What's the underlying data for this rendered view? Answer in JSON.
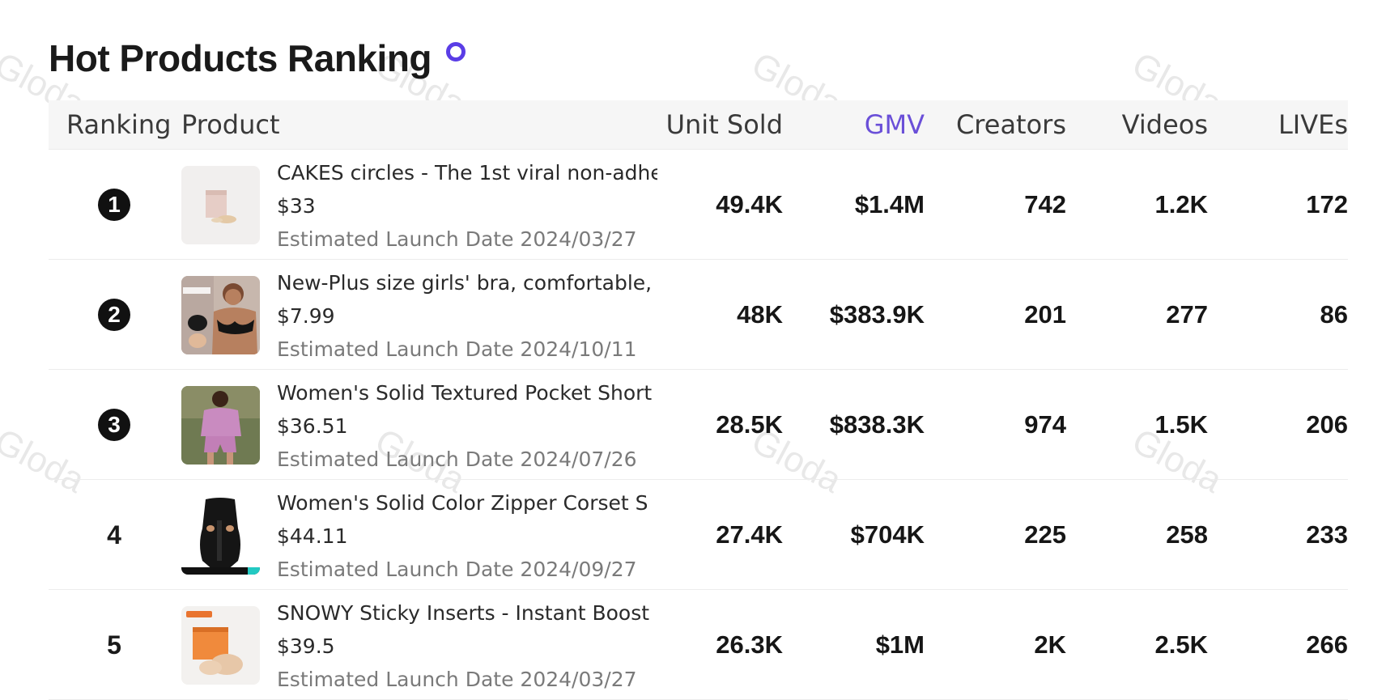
{
  "header": {
    "title": "Hot Products Ranking"
  },
  "table": {
    "columns": {
      "ranking": "Ranking",
      "product": "Product",
      "unit_sold": "Unit Sold",
      "gmv": "GMV",
      "creators": "Creators",
      "videos": "Videos",
      "lives": "LIVEs"
    },
    "rows": [
      {
        "rank": "1",
        "name": "CAKES circles - The 1st viral non-adhe",
        "price": "$33",
        "launch": "Estimated Launch Date 2024/03/27",
        "unit_sold": "49.4K",
        "gmv": "$1.4M",
        "creators": "742",
        "videos": "1.2K",
        "lives": "172"
      },
      {
        "rank": "2",
        "name": "New-Plus size girls' bra, comfortable,",
        "price": "$7.99",
        "launch": "Estimated Launch Date 2024/10/11",
        "unit_sold": "48K",
        "gmv": "$383.9K",
        "creators": "201",
        "videos": "277",
        "lives": "86"
      },
      {
        "rank": "3",
        "name": "Women's Solid Textured Pocket Short",
        "price": "$36.51",
        "launch": "Estimated Launch Date 2024/07/26",
        "unit_sold": "28.5K",
        "gmv": "$838.3K",
        "creators": "974",
        "videos": "1.5K",
        "lives": "206"
      },
      {
        "rank": "4",
        "name": "Women's Solid Color Zipper Corset S",
        "price": "$44.11",
        "launch": "Estimated Launch Date 2024/09/27",
        "unit_sold": "27.4K",
        "gmv": "$704K",
        "creators": "225",
        "videos": "258",
        "lives": "233"
      },
      {
        "rank": "5",
        "name": "SNOWY Sticky Inserts - Instant Boost",
        "price": "$39.5",
        "launch": "Estimated Launch Date 2024/03/27",
        "unit_sold": "26.3K",
        "gmv": "$1M",
        "creators": "2K",
        "videos": "2.5K",
        "lives": "266"
      }
    ]
  },
  "watermark": "Gloda",
  "colors": {
    "accent": "#6a4fd8",
    "info_ring": "#5a3de6",
    "header_bg": "#f6f6f6"
  }
}
